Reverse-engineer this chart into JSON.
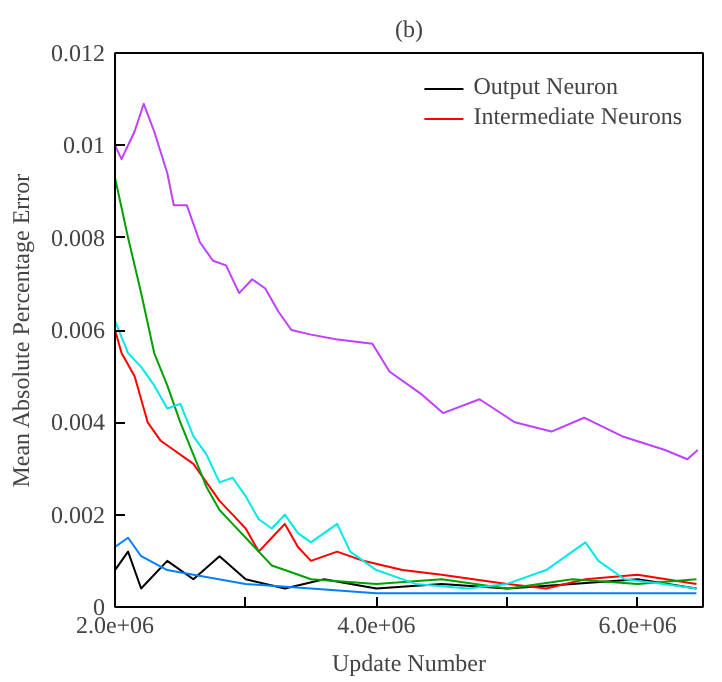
{
  "chart_data": {
    "type": "line",
    "title": "(b)",
    "xlabel": "Update Number",
    "ylabel": "Mean Absolute Percentage Error",
    "xlim": [
      2000000,
      6500000
    ],
    "ylim": [
      0,
      0.012
    ],
    "xticks": [
      {
        "value": 2000000,
        "label": "2.0e+06"
      },
      {
        "value": 3000000,
        "label": null
      },
      {
        "value": 4000000,
        "label": "4.0e+06"
      },
      {
        "value": 5000000,
        "label": null
      },
      {
        "value": 6000000,
        "label": "6.0e+06"
      }
    ],
    "yticks": [
      0,
      0.002,
      0.004,
      0.006,
      0.008,
      0.01,
      0.012
    ],
    "grid": false,
    "legend": "top right",
    "line_style": "solid",
    "marker": "none",
    "series": [
      {
        "name": "Output Neuron",
        "color": "#000000",
        "x": [
          2000000,
          2100000,
          2200000,
          2400000,
          2600000,
          2800000,
          3000000,
          3300000,
          3600000,
          4000000,
          4500000,
          5000000,
          5500000,
          6000000,
          6450000
        ],
        "values": [
          0.0008,
          0.0012,
          0.0004,
          0.001,
          0.0006,
          0.0011,
          0.0006,
          0.0004,
          0.0006,
          0.0004,
          0.0005,
          0.0004,
          0.0005,
          0.0006,
          0.0004
        ]
      },
      {
        "name": "Intermediate Neurons",
        "color": "#ff0000",
        "x": [
          2000000,
          2050000,
          2150000,
          2250000,
          2350000,
          2450000,
          2600000,
          2700000,
          2800000,
          2900000,
          3000000,
          3100000,
          3200000,
          3300000,
          3400000,
          3500000,
          3700000,
          3900000,
          4200000,
          4500000,
          5000000,
          5300000,
          5600000,
          6000000,
          6450000
        ],
        "values": [
          0.006,
          0.0055,
          0.005,
          0.004,
          0.0036,
          0.0034,
          0.0031,
          0.0027,
          0.0023,
          0.002,
          0.0017,
          0.0012,
          0.0015,
          0.0018,
          0.0013,
          0.001,
          0.0012,
          0.001,
          0.0008,
          0.0007,
          0.0005,
          0.0004,
          0.0006,
          0.0007,
          0.0005
        ]
      },
      {
        "color": "#00a000",
        "x": [
          2000000,
          2100000,
          2200000,
          2300000,
          2400000,
          2500000,
          2600000,
          2700000,
          2800000,
          2900000,
          3000000,
          3100000,
          3200000,
          3300000,
          3500000,
          4000000,
          4500000,
          5000000,
          5500000,
          6000000,
          6450000
        ],
        "values": [
          0.0093,
          0.008,
          0.0068,
          0.0055,
          0.0048,
          0.004,
          0.0033,
          0.0026,
          0.0021,
          0.0018,
          0.0015,
          0.0012,
          0.0009,
          0.0008,
          0.0006,
          0.0005,
          0.0006,
          0.0004,
          0.0006,
          0.0005,
          0.0006
        ]
      },
      {
        "color": "#0080ff",
        "x": [
          2000000,
          2100000,
          2200000,
          2400000,
          2600000,
          3000000,
          3500000,
          4000000,
          4500000,
          5000000,
          5500000,
          6000000,
          6450000
        ],
        "values": [
          0.0013,
          0.0015,
          0.0011,
          0.0008,
          0.0007,
          0.0005,
          0.0004,
          0.0003,
          0.0003,
          0.0003,
          0.0003,
          0.0003,
          0.0003
        ]
      },
      {
        "color": "#c040ff",
        "x": [
          2000000,
          2050000,
          2150000,
          2220000,
          2300000,
          2400000,
          2450000,
          2550000,
          2650000,
          2750000,
          2850000,
          2950000,
          3050000,
          3150000,
          3250000,
          3350000,
          3500000,
          3690000,
          3970000,
          4100000,
          4350000,
          4510000,
          4790000,
          5060000,
          5340000,
          5590000,
          5880000,
          6210000,
          6380000,
          6460000
        ],
        "values": [
          0.01,
          0.0097,
          0.0103,
          0.0109,
          0.0103,
          0.0094,
          0.0087,
          0.0087,
          0.0079,
          0.0075,
          0.0074,
          0.0068,
          0.0071,
          0.0069,
          0.0064,
          0.006,
          0.0059,
          0.0058,
          0.0057,
          0.0051,
          0.0046,
          0.0042,
          0.0045,
          0.004,
          0.0038,
          0.0041,
          0.0037,
          0.0034,
          0.0032,
          0.0034
        ]
      },
      {
        "color": "#00e8e8",
        "x": [
          2000000,
          2100000,
          2200000,
          2300000,
          2400000,
          2500000,
          2600000,
          2700000,
          2800000,
          2900000,
          3000000,
          3100000,
          3200000,
          3300000,
          3400000,
          3500000,
          3700000,
          3800000,
          4000000,
          4300000,
          4700000,
          5000000,
          5300000,
          5500000,
          5600000,
          5700000,
          5900000,
          6200000,
          6450000
        ],
        "values": [
          0.0062,
          0.0055,
          0.0052,
          0.0048,
          0.0043,
          0.0044,
          0.0037,
          0.0033,
          0.0027,
          0.0028,
          0.0024,
          0.0019,
          0.0017,
          0.002,
          0.0016,
          0.0014,
          0.0018,
          0.0012,
          0.0008,
          0.0005,
          0.0004,
          0.0005,
          0.0008,
          0.0012,
          0.0014,
          0.001,
          0.0006,
          0.0005,
          0.0004
        ]
      }
    ]
  }
}
